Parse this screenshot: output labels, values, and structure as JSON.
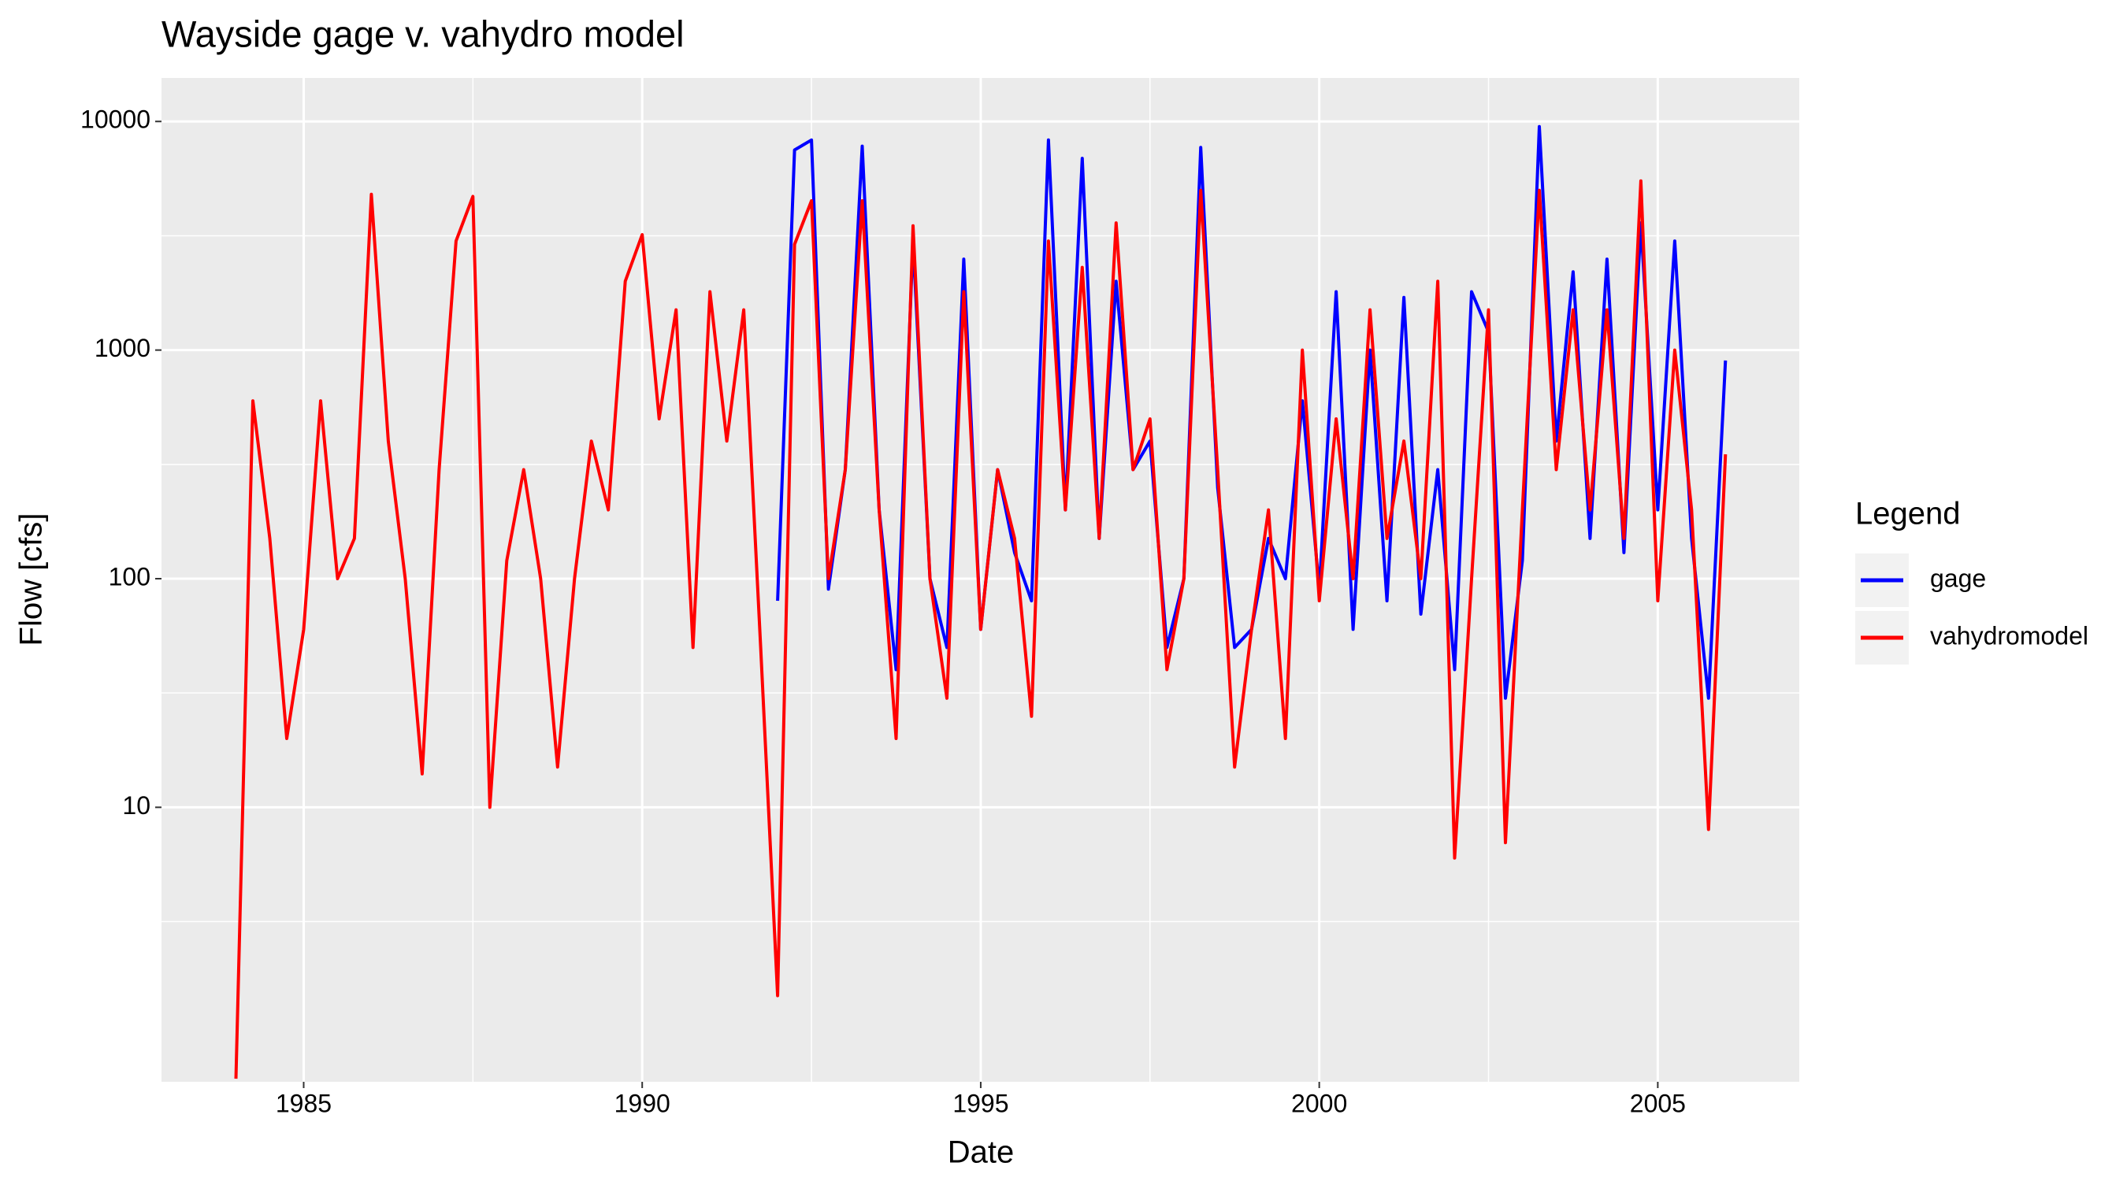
{
  "chart_data": {
    "type": "line",
    "title": "Wayside gage v. vahydro model",
    "x_label": "Date",
    "y_label": "Flow [cfs]",
    "legend_title": "Legend",
    "legend_position": "right",
    "log_y": true,
    "grid": true,
    "xlim": [
      1982.9,
      2007.09
    ],
    "xticks": [
      1985,
      1990,
      1995,
      2000,
      2005
    ],
    "ylim": [
      0.63,
      15500
    ],
    "yticks": [
      10,
      100,
      1000,
      10000
    ],
    "x": [
      1984.0,
      1984.25,
      1984.5,
      1984.75,
      1985.0,
      1985.25,
      1985.5,
      1985.75,
      1986.0,
      1986.25,
      1986.5,
      1986.75,
      1987.0,
      1987.25,
      1987.5,
      1987.75,
      1988.0,
      1988.25,
      1988.5,
      1988.75,
      1989.0,
      1989.25,
      1989.5,
      1989.75,
      1990.0,
      1990.25,
      1990.5,
      1990.75,
      1991.0,
      1991.25,
      1991.5,
      1991.75,
      1992.0,
      1992.25,
      1992.5,
      1992.75,
      1993.0,
      1993.25,
      1993.5,
      1993.75,
      1994.0,
      1994.25,
      1994.5,
      1994.75,
      1995.0,
      1995.25,
      1995.5,
      1995.75,
      1996.0,
      1996.25,
      1996.5,
      1996.75,
      1997.0,
      1997.25,
      1997.5,
      1997.75,
      1998.0,
      1998.25,
      1998.5,
      1998.75,
      1999.0,
      1999.25,
      1999.5,
      1999.75,
      2000.0,
      2000.25,
      2000.5,
      2000.75,
      2001.0,
      2001.25,
      2001.5,
      2001.75,
      2002.0,
      2002.25,
      2002.5,
      2002.75,
      2003.0,
      2003.25,
      2003.5,
      2003.75,
      2004.0,
      2004.25,
      2004.5,
      2004.75,
      2005.0,
      2005.25,
      2005.5,
      2005.75,
      2006.0
    ],
    "series": [
      {
        "name": "gage",
        "color": "#0000ff",
        "values": [
          null,
          null,
          null,
          null,
          null,
          null,
          null,
          null,
          null,
          null,
          null,
          null,
          null,
          null,
          null,
          null,
          null,
          null,
          null,
          null,
          null,
          null,
          null,
          null,
          null,
          null,
          null,
          null,
          null,
          null,
          null,
          null,
          80,
          7500,
          8300,
          90,
          300,
          7800,
          200,
          40,
          3000,
          100,
          50,
          2500,
          60,
          300,
          130,
          80,
          8300,
          200,
          6900,
          150,
          2000,
          300,
          400,
          50,
          100,
          7700,
          250,
          50,
          60,
          150,
          100,
          600,
          90,
          1800,
          60,
          1000,
          80,
          1700,
          70,
          300,
          40,
          1800,
          1200,
          30,
          120,
          9500,
          400,
          2200,
          150,
          2500,
          130,
          3600,
          200,
          3000,
          150,
          30,
          900
        ]
      },
      {
        "name": "vahydromodel",
        "color": "#ff0000",
        "values": [
          0.65,
          600,
          150,
          20,
          60,
          600,
          100,
          150,
          4800,
          400,
          100,
          14,
          300,
          3000,
          4700,
          10,
          120,
          300,
          100,
          15,
          100,
          400,
          200,
          2000,
          3200,
          500,
          1500,
          50,
          1800,
          400,
          1500,
          50,
          1.5,
          2900,
          4500,
          100,
          300,
          4500,
          200,
          20,
          3500,
          100,
          30,
          1800,
          60,
          300,
          150,
          25,
          3000,
          200,
          2300,
          150,
          3600,
          300,
          500,
          40,
          100,
          5000,
          300,
          15,
          60,
          200,
          20,
          1000,
          80,
          500,
          100,
          1500,
          150,
          400,
          100,
          2000,
          6,
          100,
          1500,
          7,
          200,
          5000,
          300,
          1500,
          200,
          1500,
          150,
          5500,
          80,
          1000,
          200,
          8,
          350
        ]
      }
    ]
  }
}
